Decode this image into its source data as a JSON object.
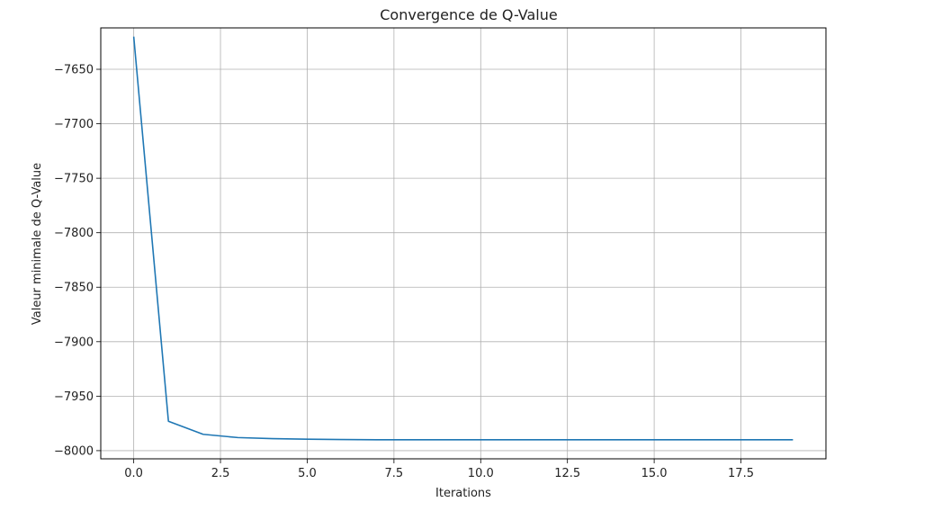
{
  "chart_data": {
    "type": "line",
    "title": "Convergence de Q-Value",
    "xlabel": "Iterations",
    "ylabel": "Valeur minimale de Q-Value",
    "xlim": [
      -0.95,
      19.95
    ],
    "ylim": [
      -8007.5,
      -7612
    ],
    "grid": true,
    "line_color": "#1f77b4",
    "x_ticks": [
      0.0,
      2.5,
      5.0,
      7.5,
      10.0,
      12.5,
      15.0,
      17.5
    ],
    "x_tick_labels": [
      "0.0",
      "2.5",
      "5.0",
      "7.5",
      "10.0",
      "12.5",
      "15.0",
      "17.5"
    ],
    "y_ticks": [
      -7650,
      -7700,
      -7750,
      -7800,
      -7850,
      -7900,
      -7950,
      -8000
    ],
    "y_tick_labels": [
      "−7650",
      "−7700",
      "−7750",
      "−7800",
      "−7850",
      "−7900",
      "−7950",
      "−8000"
    ],
    "series": [
      {
        "x": [
          0,
          1,
          2,
          3,
          4,
          5,
          6,
          7,
          8,
          9,
          10,
          11,
          12,
          13,
          14,
          15,
          16,
          17,
          18,
          19
        ],
        "values": [
          -7620,
          -7973,
          -7985,
          -7988,
          -7989,
          -7989.5,
          -7989.8,
          -7990,
          -7990,
          -7990,
          -7990,
          -7990,
          -7990,
          -7990,
          -7990,
          -7990,
          -7990,
          -7990,
          -7990,
          -7990
        ]
      }
    ]
  }
}
